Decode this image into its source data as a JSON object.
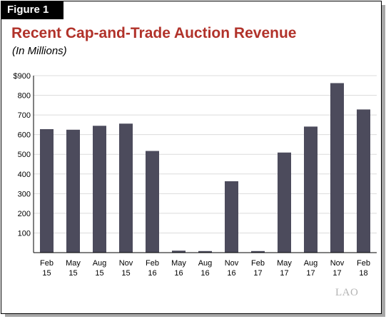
{
  "figure_label": "Figure 1",
  "logo_text": "LAO",
  "colors": {
    "bar": "#4c4b5c",
    "title": "#b1322a",
    "gridline": "#dcdcdc",
    "axis": "#000000"
  },
  "chart_data": {
    "type": "bar",
    "title": "Recent Cap-and-Trade Auction Revenue",
    "subtitle": "(In Millions)",
    "xlabel": "",
    "ylabel": "",
    "grid": true,
    "legend": "none",
    "ylim": [
      0,
      900
    ],
    "yticks": [
      100,
      200,
      300,
      400,
      500,
      600,
      700,
      800,
      900
    ],
    "ytick_labels": [
      "100",
      "200",
      "300",
      "400",
      "500",
      "600",
      "700",
      "800",
      "$900"
    ],
    "categories": [
      [
        "Feb",
        "15"
      ],
      [
        "May",
        "15"
      ],
      [
        "Aug",
        "15"
      ],
      [
        "Nov",
        "15"
      ],
      [
        "Feb",
        "16"
      ],
      [
        "May",
        "16"
      ],
      [
        "Aug",
        "16"
      ],
      [
        "Nov",
        "16"
      ],
      [
        "Feb",
        "17"
      ],
      [
        "May",
        "17"
      ],
      [
        "Aug",
        "17"
      ],
      [
        "Nov",
        "17"
      ],
      [
        "Feb",
        "18"
      ]
    ],
    "values": [
      628,
      625,
      645,
      656,
      517,
      10,
      8,
      363,
      8,
      509,
      641,
      862,
      728
    ]
  }
}
